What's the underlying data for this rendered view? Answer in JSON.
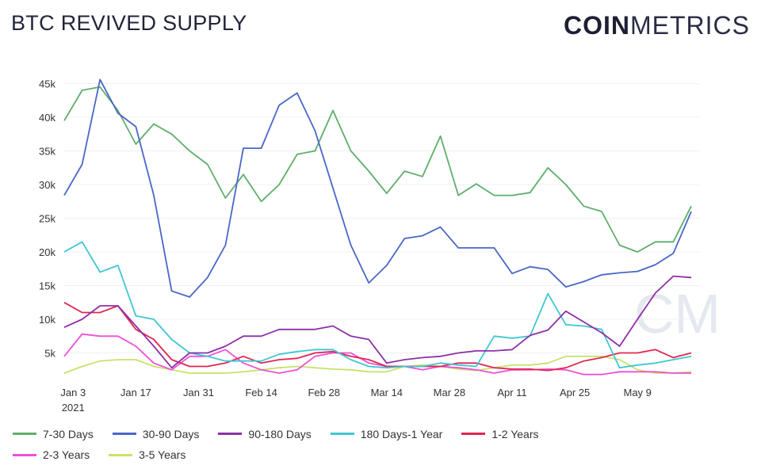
{
  "header": {
    "title": "BTC REVIVED SUPPLY",
    "logo_bold": "COIN",
    "logo_light": "METRICS"
  },
  "watermark": "CM",
  "chart_data": {
    "type": "line",
    "title": "BTC REVIVED SUPPLY",
    "xlabel": "",
    "ylabel": "",
    "ylim": [
      0,
      47000
    ],
    "grid": true,
    "legend_placement": "bottom",
    "y_ticks": [
      "5k",
      "10k",
      "15k",
      "20k",
      "25k",
      "30k",
      "35k",
      "40k",
      "45k"
    ],
    "y_tick_values": [
      5000,
      10000,
      15000,
      20000,
      25000,
      30000,
      35000,
      40000,
      45000
    ],
    "x_ticks": [
      {
        "date": "2021-01-03",
        "label": "Jan 3",
        "sub": "2021"
      },
      {
        "date": "2021-01-17",
        "label": "Jan 17"
      },
      {
        "date": "2021-01-31",
        "label": "Jan 31"
      },
      {
        "date": "2021-02-14",
        "label": "Feb 14"
      },
      {
        "date": "2021-02-28",
        "label": "Feb 28"
      },
      {
        "date": "2021-03-14",
        "label": "Mar 14"
      },
      {
        "date": "2021-03-28",
        "label": "Mar 28"
      },
      {
        "date": "2021-04-11",
        "label": "Apr 11"
      },
      {
        "date": "2021-04-25",
        "label": "Apr 25"
      },
      {
        "date": "2021-05-09",
        "label": "May 9"
      }
    ],
    "x": [
      "2021-01-01",
      "2021-01-05",
      "2021-01-09",
      "2021-01-13",
      "2021-01-17",
      "2021-01-21",
      "2021-01-25",
      "2021-01-29",
      "2021-02-02",
      "2021-02-06",
      "2021-02-10",
      "2021-02-14",
      "2021-02-18",
      "2021-02-22",
      "2021-02-26",
      "2021-03-02",
      "2021-03-06",
      "2021-03-10",
      "2021-03-14",
      "2021-03-18",
      "2021-03-22",
      "2021-03-26",
      "2021-03-30",
      "2021-04-03",
      "2021-04-07",
      "2021-04-11",
      "2021-04-15",
      "2021-04-19",
      "2021-04-23",
      "2021-04-27",
      "2021-05-01",
      "2021-05-05",
      "2021-05-09",
      "2021-05-13",
      "2021-05-17",
      "2021-05-21"
    ],
    "series": [
      {
        "name": "7-30 Days",
        "color": "#5fae6a",
        "values": [
          39500,
          44000,
          44500,
          41000,
          36000,
          39000,
          37500,
          35000,
          33000,
          28000,
          31500,
          27500,
          30000,
          34500,
          35000,
          41000,
          35000,
          32000,
          28700,
          32000,
          31200,
          37200,
          28400,
          30100,
          28400,
          28400,
          28800,
          32500,
          30000,
          26800,
          26000,
          21000,
          20000,
          21500,
          21500,
          26800
        ]
      },
      {
        "name": "30-90 Days",
        "color": "#4a66c8",
        "values": [
          28400,
          33000,
          45600,
          40600,
          38600,
          28400,
          14200,
          13300,
          16200,
          21000,
          35400,
          35400,
          41800,
          43600,
          38000,
          29500,
          21000,
          15400,
          18000,
          22000,
          22400,
          23700,
          20600,
          20600,
          20600,
          16800,
          17800,
          17400,
          14800,
          15600,
          16600,
          16900,
          17100,
          18100,
          19800,
          26000
        ]
      },
      {
        "name": "90-180 Days",
        "color": "#8e2fa6",
        "values": [
          8800,
          10000,
          12000,
          12000,
          9000,
          6000,
          2800,
          5000,
          5000,
          6000,
          7500,
          7500,
          8500,
          8500,
          8500,
          9000,
          7500,
          7000,
          3500,
          4000,
          4300,
          4500,
          5000,
          5300,
          5300,
          5500,
          7600,
          8400,
          11200,
          9600,
          8000,
          6000,
          10000,
          13900,
          16400,
          16200
        ]
      },
      {
        "name": "180 Days-1 Year",
        "color": "#3fc7d4",
        "values": [
          20000,
          21500,
          17000,
          18000,
          10500,
          10000,
          7000,
          5000,
          4500,
          3800,
          3800,
          3800,
          4800,
          5200,
          5500,
          5500,
          4000,
          3000,
          2800,
          3000,
          3000,
          3500,
          3200,
          3000,
          7500,
          7200,
          7500,
          13800,
          9200,
          9000,
          8500,
          2800,
          3200,
          3500,
          4000,
          4500
        ]
      },
      {
        "name": "1-2 Years",
        "color": "#e0264f",
        "values": [
          12500,
          11000,
          11000,
          12000,
          8500,
          7000,
          4000,
          3000,
          3000,
          3500,
          4500,
          3500,
          4000,
          4200,
          5000,
          5200,
          4500,
          4000,
          3000,
          3000,
          3000,
          3000,
          3500,
          3500,
          2800,
          2600,
          2600,
          2400,
          2800,
          3800,
          4300,
          5000,
          5000,
          5500,
          4300,
          5000
        ]
      },
      {
        "name": "2-3 Years",
        "color": "#ee4fd8",
        "values": [
          4500,
          7800,
          7500,
          7500,
          6000,
          3500,
          2500,
          4500,
          4500,
          5500,
          3500,
          2500,
          2000,
          2500,
          4500,
          5000,
          5000,
          3500,
          3000,
          3000,
          2500,
          3000,
          2800,
          2500,
          2000,
          2500,
          2500,
          2600,
          2500,
          1800,
          1800,
          2200,
          2200,
          2200,
          2000,
          2000
        ]
      },
      {
        "name": "3-5 Years",
        "color": "#c6e36a",
        "values": [
          2000,
          3000,
          3800,
          4000,
          4000,
          3000,
          2500,
          2000,
          2000,
          2000,
          2200,
          2500,
          2800,
          3000,
          2800,
          2600,
          2500,
          2200,
          2200,
          3000,
          3200,
          3000,
          2600,
          2400,
          2800,
          3200,
          3200,
          3500,
          4500,
          4500,
          4500,
          4000,
          2500,
          2000,
          2000,
          2200
        ]
      }
    ]
  }
}
